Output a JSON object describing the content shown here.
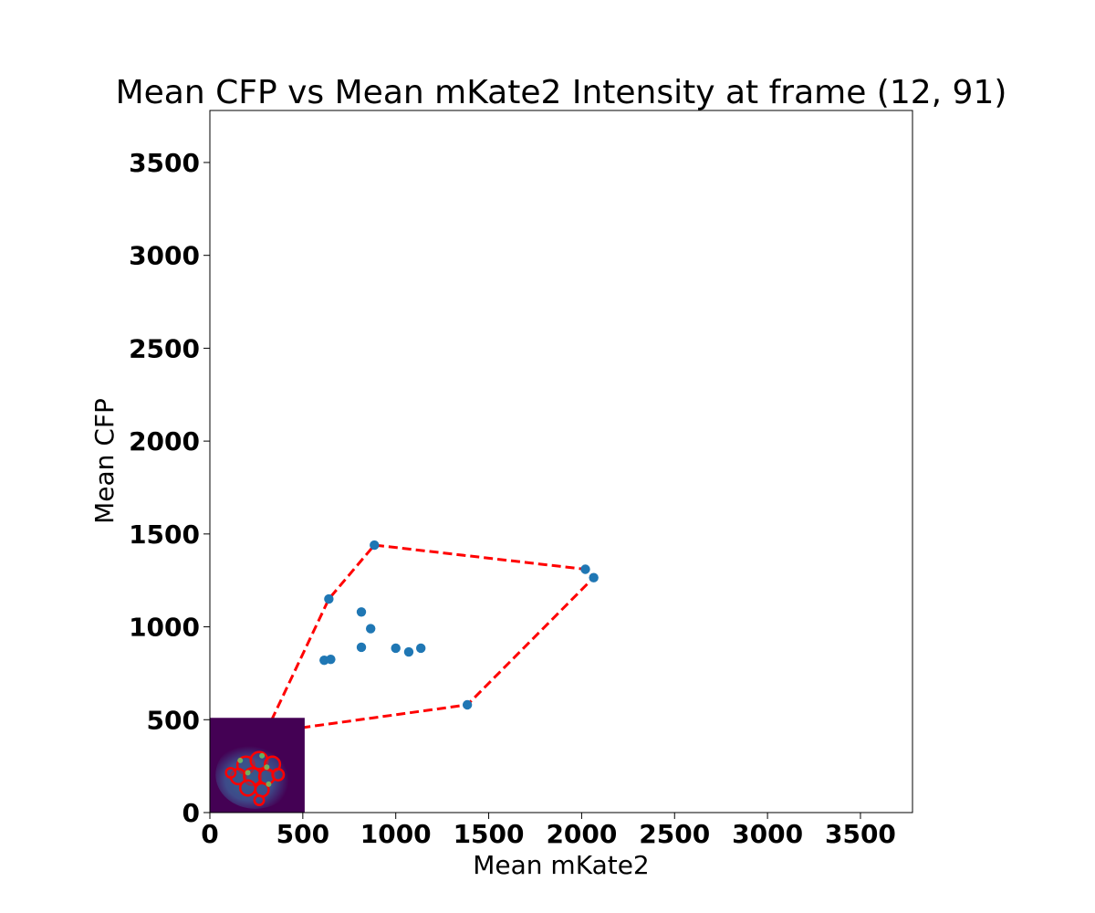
{
  "chart_data": {
    "type": "scatter",
    "title": "Mean CFP vs Mean mKate2 Intensity at frame (12, 91)",
    "xlabel": "Mean mKate2",
    "ylabel": "Mean CFP",
    "xlim": [
      0,
      3780
    ],
    "ylim": [
      0,
      3780
    ],
    "xticks": [
      0,
      500,
      1000,
      1500,
      2000,
      2500,
      3000,
      3500
    ],
    "yticks": [
      0,
      500,
      1000,
      1500,
      2000,
      2500,
      3000,
      3500
    ],
    "xtick_labels": [
      "0",
      "500",
      "1000",
      "1500",
      "2000",
      "2500",
      "3000",
      "3500"
    ],
    "ytick_labels": [
      "0",
      "500",
      "1000",
      "1500",
      "2000",
      "2500",
      "3000",
      "3500"
    ],
    "grid": false,
    "series": [
      {
        "color": "#1f77b4",
        "points": [
          [
            300,
            430
          ],
          [
            640,
            1150
          ],
          [
            885,
            1440
          ],
          [
            2020,
            1310
          ],
          [
            2065,
            1265
          ],
          [
            1385,
            580
          ],
          [
            615,
            820
          ],
          [
            650,
            825
          ],
          [
            815,
            1080
          ],
          [
            865,
            990
          ],
          [
            815,
            890
          ],
          [
            1000,
            885
          ],
          [
            1070,
            865
          ],
          [
            1135,
            885
          ]
        ]
      }
    ],
    "hull": {
      "color": "#ff0000",
      "style": "dashed",
      "points": [
        [
          300,
          430
        ],
        [
          640,
          1150
        ],
        [
          885,
          1440
        ],
        [
          2020,
          1310
        ],
        [
          2065,
          1265
        ],
        [
          1385,
          580
        ],
        [
          300,
          430
        ]
      ]
    },
    "inset_image": {
      "description_colors": {
        "background": "#440154",
        "cell": "#3b528b",
        "outline": "#ff0000"
      },
      "placement": "bottom-left"
    }
  }
}
